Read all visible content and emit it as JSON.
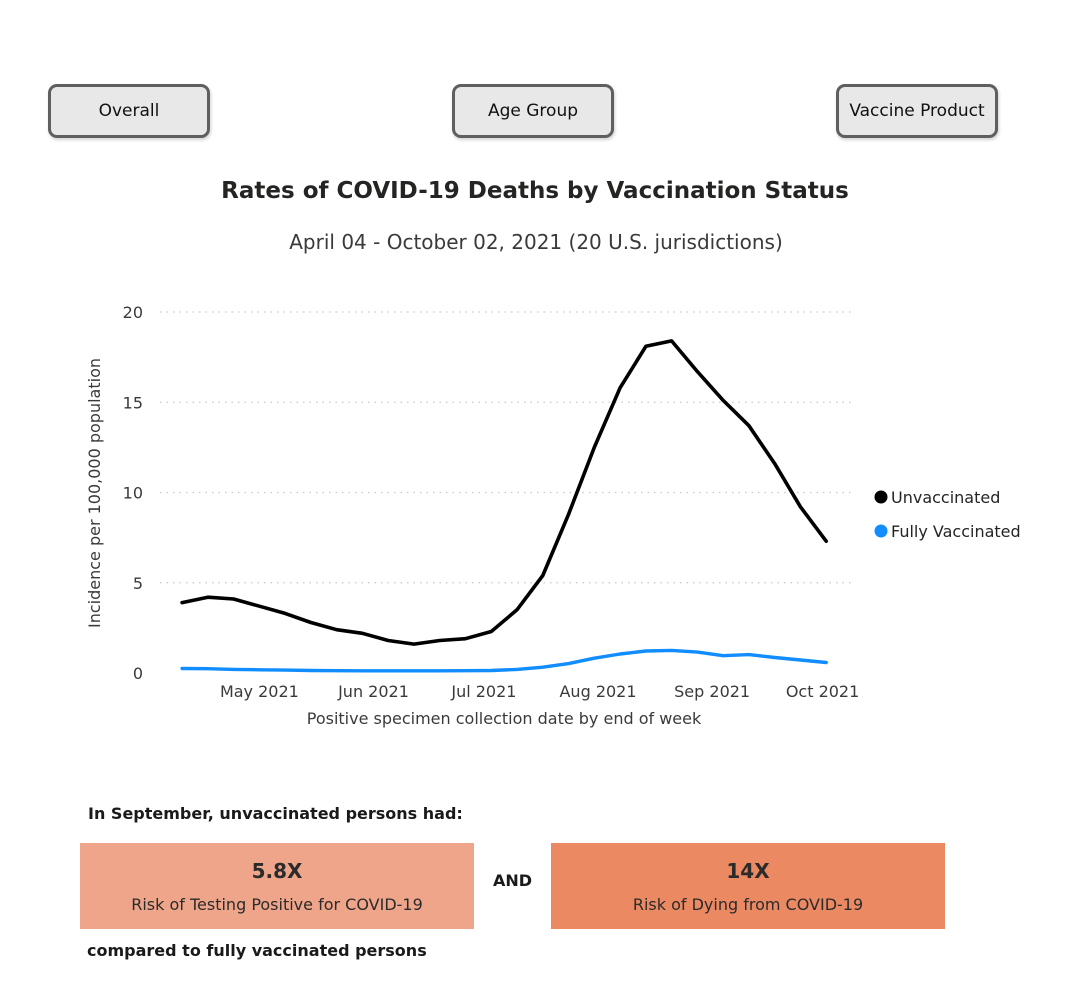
{
  "tabs": {
    "overall": "Overall",
    "age_group": "Age Group",
    "vaccine_product": "Vaccine Product"
  },
  "header": {
    "title": "Rates of COVID-19 Deaths by Vaccination Status",
    "subtitle": "April 04 - October 02, 2021 (20 U.S. jurisdictions)"
  },
  "chart_data": {
    "type": "line",
    "title": "Rates of COVID-19 Deaths by Vaccination Status",
    "subtitle": "April 04 - October 02, 2021 (20 U.S. jurisdictions)",
    "xlabel": "Positive specimen collection date by end of week",
    "ylabel": "Incidence per 100,000 population",
    "ylim": [
      0,
      20
    ],
    "yticks": [
      0,
      5,
      10,
      15,
      20
    ],
    "xticks": [
      "May 2021",
      "Jun 2021",
      "Jul 2021",
      "Aug 2021",
      "Sep 2021",
      "Oct 2021"
    ],
    "x": [
      "2021-04-10",
      "2021-04-17",
      "2021-04-24",
      "2021-05-01",
      "2021-05-08",
      "2021-05-15",
      "2021-05-22",
      "2021-05-29",
      "2021-06-05",
      "2021-06-12",
      "2021-06-19",
      "2021-06-26",
      "2021-07-03",
      "2021-07-10",
      "2021-07-17",
      "2021-07-24",
      "2021-07-31",
      "2021-08-07",
      "2021-08-14",
      "2021-08-21",
      "2021-08-28",
      "2021-09-04",
      "2021-09-11",
      "2021-09-18",
      "2021-09-25",
      "2021-10-02"
    ],
    "series": [
      {
        "name": "Unvaccinated",
        "color": "#000000",
        "values": [
          3.9,
          4.2,
          4.1,
          3.7,
          3.3,
          2.8,
          2.4,
          2.2,
          1.8,
          1.6,
          1.8,
          1.9,
          2.3,
          3.5,
          5.4,
          8.8,
          12.5,
          15.8,
          18.1,
          18.4,
          16.7,
          15.1,
          13.7,
          11.6,
          9.2,
          7.3
        ]
      },
      {
        "name": "Fully Vaccinated",
        "color": "#118DFF",
        "values": [
          0.25,
          0.24,
          0.2,
          0.18,
          0.16,
          0.14,
          0.13,
          0.12,
          0.12,
          0.12,
          0.12,
          0.13,
          0.14,
          0.2,
          0.32,
          0.52,
          0.82,
          1.05,
          1.22,
          1.25,
          1.16,
          0.96,
          1.02,
          0.86,
          0.72,
          0.58
        ]
      }
    ],
    "grid": "horizontal dotted",
    "legend": "right"
  },
  "summary": {
    "intro": "In September, unvaccinated persons had:",
    "testing": {
      "value": "5.8X",
      "label": "Risk of Testing Positive for COVID-19",
      "color": "#EFA58A"
    },
    "and": "AND",
    "dying": {
      "value": "14X",
      "label": "Risk of Dying from COVID-19",
      "color": "#EB8962"
    },
    "outro": "compared to fully vaccinated persons"
  }
}
